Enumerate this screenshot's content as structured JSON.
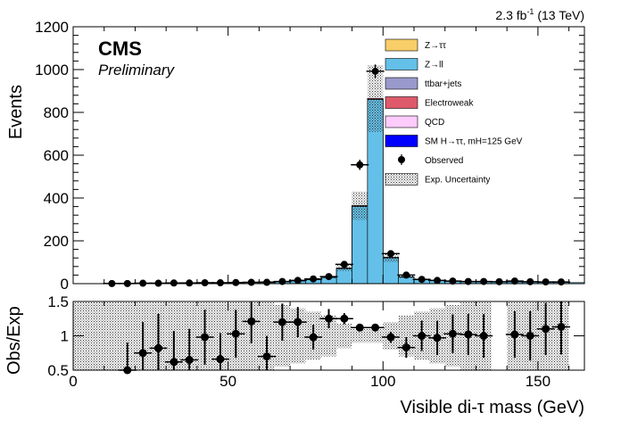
{
  "chart_data": [
    {
      "type": "bar",
      "subtype": "stacked-histogram",
      "title": "",
      "lumi_label": "2.3 fb",
      "lumi_exp": "-1",
      "lumi_energy": " (13 TeV)",
      "cms_label": "CMS",
      "preliminary_label": "Preliminary",
      "xlabel": "Visible di-τ mass (GeV)",
      "ylabel": "Events",
      "xlim": [
        0,
        165
      ],
      "ylim": [
        0,
        1200
      ],
      "x_ticks": [
        0,
        50,
        100,
        150
      ],
      "y_ticks": [
        0,
        200,
        400,
        600,
        800,
        1000,
        1200
      ],
      "y_tick_labels": [
        "0",
        "200",
        "400",
        "600",
        "800",
        "1000",
        "1200"
      ],
      "bin_edges": [
        10,
        15,
        20,
        25,
        30,
        35,
        40,
        45,
        50,
        55,
        60,
        65,
        70,
        75,
        80,
        85,
        90,
        95,
        100,
        105,
        110,
        115,
        120,
        125,
        130,
        135,
        140,
        145,
        150,
        155,
        160,
        165
      ],
      "series": [
        {
          "name": "Z→ll",
          "color": "#64c0e8",
          "values": [
            1,
            1,
            2,
            2,
            3,
            4,
            4,
            4,
            5,
            6,
            7,
            9,
            12,
            18,
            28,
            70,
            360,
            860,
            120,
            30,
            18,
            14,
            10,
            9,
            8,
            8,
            8,
            7,
            6,
            6,
            5
          ]
        },
        {
          "name": "Z→ττ",
          "color": "#f8ce68",
          "values": [
            0,
            0,
            0,
            0,
            0,
            0,
            0,
            0,
            0,
            0,
            0,
            0,
            0,
            0,
            0,
            0,
            0,
            0,
            0,
            0,
            0,
            0,
            0,
            0,
            0,
            0,
            0,
            0,
            0,
            0,
            0
          ]
        },
        {
          "name": "ttbar+jets",
          "color": "#9999cc",
          "values": [
            0,
            0,
            0,
            0,
            1,
            1,
            1,
            1,
            1,
            1,
            1,
            1,
            1,
            1,
            1,
            1,
            1,
            1,
            1,
            1,
            1,
            1,
            1,
            1,
            1,
            1,
            1,
            1,
            1,
            1,
            0
          ]
        },
        {
          "name": "Electroweak",
          "color": "#de5a6a",
          "values": [
            0,
            0,
            0,
            0,
            0,
            0,
            0,
            0,
            0,
            0,
            0,
            0,
            0,
            1,
            1,
            2,
            3,
            4,
            2,
            1,
            1,
            0,
            0,
            0,
            0,
            0,
            0,
            0,
            0,
            0,
            0
          ]
        },
        {
          "name": "QCD",
          "color": "#fdccfd",
          "values": [
            0,
            0,
            0,
            0,
            0,
            0,
            0,
            0,
            0,
            0,
            0,
            0,
            0,
            0,
            0,
            0,
            0,
            0,
            0,
            0,
            0,
            0,
            0,
            0,
            0,
            0,
            0,
            0,
            0,
            0,
            0
          ]
        },
        {
          "name": "SM H→ττ, mH=125 GeV",
          "color": "#0000ff",
          "values": [
            0,
            0,
            0,
            0,
            0,
            0,
            0,
            0,
            0,
            0,
            0,
            0,
            0,
            0,
            0,
            0,
            0,
            0,
            0,
            0,
            0,
            0,
            0,
            0,
            0,
            0,
            0,
            0,
            0,
            0,
            0
          ]
        }
      ],
      "observed": {
        "name": "Observed",
        "x": [
          12.5,
          17.5,
          22.5,
          27.5,
          32.5,
          37.5,
          42.5,
          47.5,
          52.5,
          57.5,
          62.5,
          67.5,
          72.5,
          77.5,
          82.5,
          87.5,
          92.5,
          97.5,
          102.5,
          107.5,
          112.5,
          117.5,
          122.5,
          127.5,
          132.5,
          137.5,
          142.5,
          147.5,
          152.5,
          157.5
        ],
        "y": [
          0.5,
          0.5,
          2,
          2,
          3,
          3,
          4,
          4,
          5,
          6,
          6,
          10,
          15,
          22,
          33,
          90,
          555,
          992,
          140,
          40,
          20,
          15,
          12,
          10,
          10,
          9,
          12,
          9,
          8,
          8
        ]
      },
      "uncertainty_name": "Exp. Uncertainty",
      "legend_position": "top-right"
    },
    {
      "type": "scatter",
      "subtype": "ratio",
      "xlabel": "Visible di-τ mass (GeV)",
      "ylabel": "Obs/Exp",
      "xlim": [
        0,
        165
      ],
      "ylim": [
        0.5,
        1.5
      ],
      "x_ticks": [
        0,
        50,
        100,
        150
      ],
      "x_tick_labels": [
        "0",
        "50",
        "100",
        "150"
      ],
      "y_ticks": [
        0.5,
        1,
        1.5
      ],
      "y_tick_labels": [
        "0.5",
        "1",
        "1.5"
      ],
      "x": [
        17.5,
        22.5,
        27.5,
        32.5,
        37.5,
        42.5,
        47.5,
        52.5,
        57.5,
        62.5,
        67.5,
        72.5,
        77.5,
        82.5,
        87.5,
        92.5,
        97.5,
        102.5,
        107.5,
        112.5,
        117.5,
        122.5,
        127.5,
        132.5,
        142.5,
        147.5,
        152.5,
        157.5
      ],
      "y": [
        0.5,
        0.75,
        0.82,
        0.62,
        0.65,
        0.98,
        0.66,
        1.03,
        1.21,
        0.7,
        1.2,
        1.2,
        0.98,
        1.25,
        1.25,
        1.12,
        1.12,
        0.98,
        0.83,
        1.0,
        0.97,
        1.03,
        1.02,
        1.0,
        1.02,
        1.0,
        1.1,
        1.13
      ],
      "err": [
        0.4,
        0.45,
        0.5,
        0.45,
        0.45,
        0.4,
        0.38,
        0.35,
        0.32,
        0.3,
        0.27,
        0.22,
        0.18,
        0.14,
        0.08,
        0.04,
        0.03,
        0.08,
        0.15,
        0.22,
        0.25,
        0.28,
        0.3,
        0.32,
        0.34,
        0.36,
        0.38,
        0.4
      ],
      "band_half_width": [
        0.5,
        0.5,
        0.5,
        0.5,
        0.5,
        0.5,
        0.5,
        0.5,
        0.5,
        0.5,
        0.45,
        0.4,
        0.35,
        0.3,
        0.18,
        0.1,
        0.1,
        0.2,
        0.3,
        0.35,
        0.4,
        0.45,
        0.5,
        0.5,
        0.5,
        0.5,
        0.5,
        0.5
      ]
    }
  ]
}
